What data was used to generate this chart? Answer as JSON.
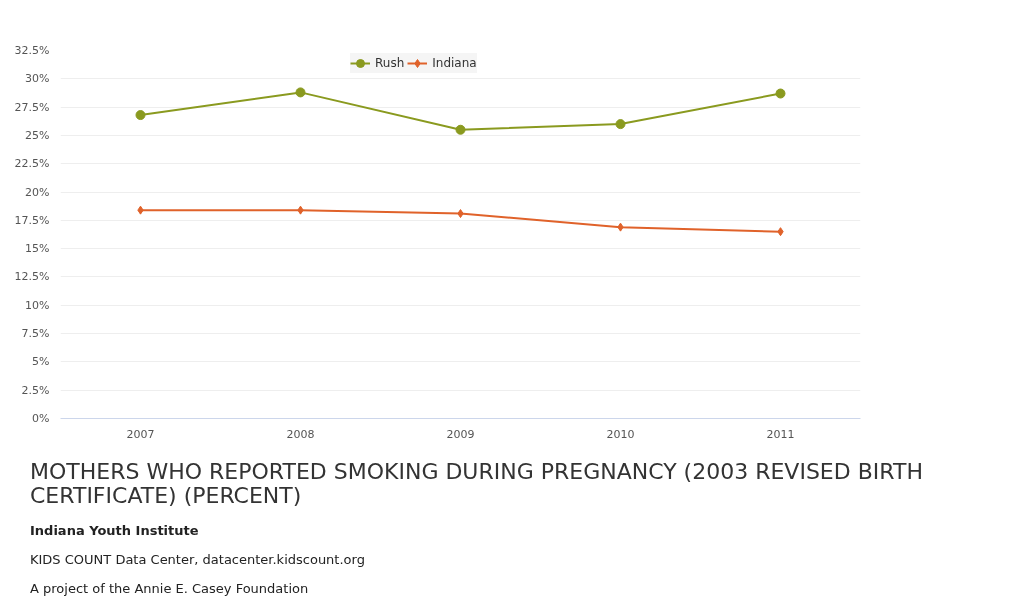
{
  "chart_data": {
    "type": "line",
    "title": "MOTHERS WHO REPORTED SMOKING DURING PREGNANCY (2003 REVISED BIRTH CERTIFICATE) (PERCENT)",
    "categories": [
      "2007",
      "2008",
      "2009",
      "2010",
      "2011"
    ],
    "series": [
      {
        "name": "Rush",
        "color": "#8a9a1f",
        "marker": "circle",
        "values": [
          26.8,
          28.8,
          25.5,
          26.0,
          28.7
        ]
      },
      {
        "name": "Indiana",
        "color": "#e0622a",
        "marker": "diamond",
        "values": [
          18.4,
          18.4,
          18.1,
          16.9,
          16.5
        ]
      }
    ],
    "ylim": [
      0,
      32.5
    ],
    "yticks": [
      {
        "value": 0,
        "label": "0%"
      },
      {
        "value": 2.5,
        "label": "2.5%"
      },
      {
        "value": 5,
        "label": "5%"
      },
      {
        "value": 7.5,
        "label": "7.5%"
      },
      {
        "value": 10,
        "label": "10%"
      },
      {
        "value": 12.5,
        "label": "12.5%"
      },
      {
        "value": 15,
        "label": "15%"
      },
      {
        "value": 17.5,
        "label": "17.5%"
      },
      {
        "value": 20,
        "label": "20%"
      },
      {
        "value": 22.5,
        "label": "22.5%"
      },
      {
        "value": 25,
        "label": "25%"
      },
      {
        "value": 27.5,
        "label": "27.5%"
      },
      {
        "value": 30,
        "label": "30%"
      },
      {
        "value": 32.5,
        "label": "32.5%"
      }
    ],
    "grid": "y",
    "legend": "top",
    "annotations": [
      "Indiana Youth Institute",
      "KIDS COUNT Data Center, datacenter.kidscount.org",
      "A project of the Annie E. Casey Foundation"
    ]
  }
}
